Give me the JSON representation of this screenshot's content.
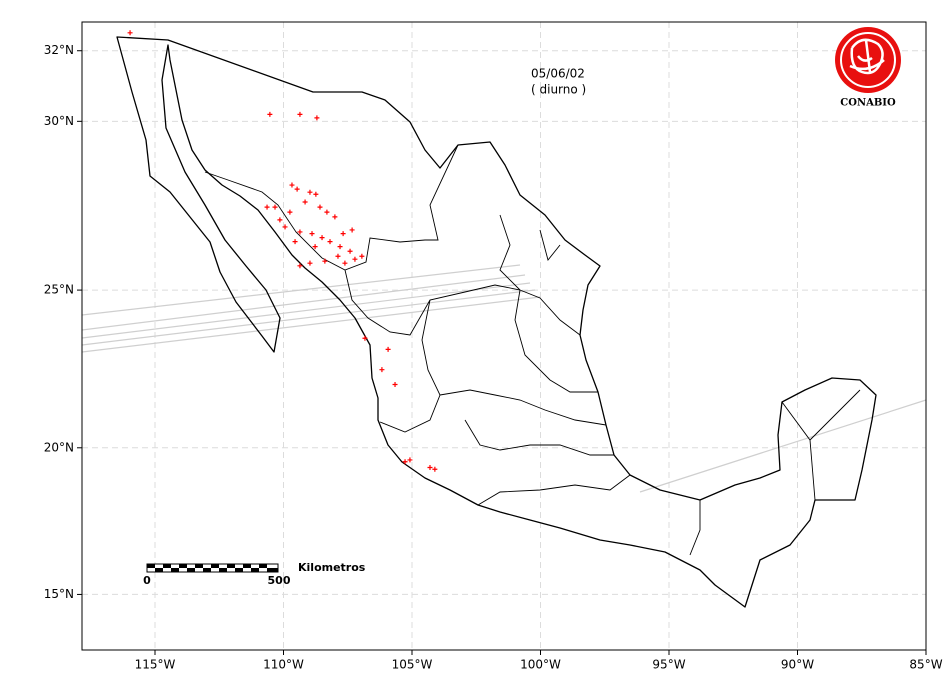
{
  "map": {
    "date": "05/06/02",
    "period": "( diurno )",
    "logo_text": "CONABIO",
    "xlim": [
      -117.84,
      -85
    ],
    "ylim": [
      13,
      32.8
    ],
    "xticks": [
      {
        "value": -115,
        "label": "115°W"
      },
      {
        "value": -110,
        "label": "110°W"
      },
      {
        "value": -105,
        "label": "105°W"
      },
      {
        "value": -100,
        "label": "100°W"
      },
      {
        "value": -95,
        "label": "95°W"
      },
      {
        "value": -90,
        "label": "90°W"
      },
      {
        "value": -85,
        "label": "85°W"
      }
    ],
    "yticks": [
      {
        "value": 32,
        "label": "32°N"
      },
      {
        "value": 30,
        "label": "30°N"
      },
      {
        "value": 25,
        "label": "25°N"
      },
      {
        "value": 20,
        "label": "20°N"
      },
      {
        "value": 15,
        "label": "15°N"
      }
    ],
    "grid": true,
    "hotspot_color": "#ff0000",
    "hotspots": {
      "lon": [
        -109.67,
        -109.47,
        -108.97,
        -108.74,
        -109.16,
        -108.58,
        -108.31,
        -108.0,
        -109.75,
        -110.14,
        -109.94,
        -109.36,
        -108.89,
        -108.5,
        -108.19,
        -107.8,
        -107.41,
        -107.88,
        -108.39,
        -108.97,
        -109.36,
        -107.61,
        -107.22,
        -106.95,
        -108.77,
        -109.55,
        -110.64,
        -110.33,
        -107.33,
        -107.68,
        -110.53,
        -109.36,
        -108.7,
        -115.97,
        -106.83,
        -105.93,
        -106.17,
        -105.66,
        -105.27,
        -105.08,
        -104.3,
        -104.11
      ],
      "lat": [
        28.15,
        28.03,
        27.94,
        27.88,
        27.65,
        27.5,
        27.35,
        27.21,
        27.35,
        27.12,
        26.91,
        26.76,
        26.71,
        26.59,
        26.47,
        26.32,
        26.18,
        26.03,
        25.88,
        25.82,
        25.74,
        25.82,
        25.94,
        26.03,
        26.32,
        26.47,
        27.5,
        27.5,
        26.82,
        26.71,
        30.2,
        30.2,
        30.1,
        32.5,
        23.51,
        23.16,
        22.52,
        22.05,
        19.54,
        19.6,
        19.35,
        19.29
      ]
    },
    "scale_bar": {
      "label": "Kilometros",
      "ticks": [
        0,
        500
      ]
    }
  }
}
